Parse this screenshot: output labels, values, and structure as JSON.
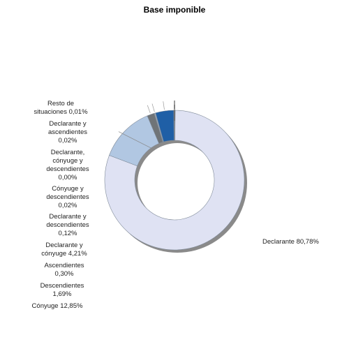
{
  "chart_data": {
    "type": "pie",
    "variant": "donut",
    "title": "Base imponible",
    "slices": [
      {
        "label": "Declarante",
        "value": 80.78,
        "display": "Declarante 80,78%",
        "color": "#dfe2f3"
      },
      {
        "label": "Cónyuge",
        "value": 12.85,
        "display": "Cónyuge 12,85%",
        "color": "#b1c7e2"
      },
      {
        "label": "Descendientes",
        "value": 1.69,
        "display": "Descendientes\n1,69%",
        "color": "#6f7478"
      },
      {
        "label": "Ascendientes",
        "value": 0.3,
        "display": "Ascendientes\n0,30%",
        "color": "#9aa8b8"
      },
      {
        "label": "Declarante y cónyuge",
        "value": 4.21,
        "display": "Declarante y\ncónyuge 4,21%",
        "color": "#1f5fa6"
      },
      {
        "label": "Declarante y descendientes",
        "value": 0.12,
        "display": "Declarante y\ndescendientes\n0,12%",
        "color": "#4a4a4a"
      },
      {
        "label": "Cónyuge y descendientes",
        "value": 0.02,
        "display": "Cónyuge y\ndescendientes\n0,02%",
        "color": "#7d8a99"
      },
      {
        "label": "Declarante, cónyuge y descendientes",
        "value": 0.0,
        "display": "Declarante,\ncónyuge y\ndescendientes\n0,00%",
        "color": "#5c6773"
      },
      {
        "label": "Declarante y ascendientes",
        "value": 0.02,
        "display": "Declarante y\nascendientes\n0,02%",
        "color": "#8c95a0"
      },
      {
        "label": "Resto de situaciones",
        "value": 0.01,
        "display": "Resto de\nsituaciones 0,01%",
        "color": "#777777"
      }
    ],
    "legend": "left",
    "start_angle_deg": 0,
    "direction": "clockwise"
  }
}
